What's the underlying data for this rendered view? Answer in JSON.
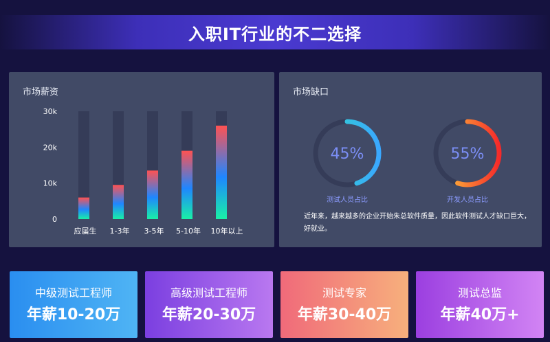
{
  "header": {
    "title": "入职IT行业的不二选择"
  },
  "salary_panel": {
    "title": "市场薪资"
  },
  "gap_panel": {
    "title": "市场缺口",
    "description": "近年来，越来越多的企业开始朱总软件质量，因此软件测试人才缺口巨大，好就业。"
  },
  "chart_data": [
    {
      "type": "bar",
      "title": "市场薪资",
      "categories": [
        "应届生",
        "1-3年",
        "3-5年",
        "5-10年",
        "10年以上"
      ],
      "values": [
        6,
        9.5,
        13.5,
        19,
        26
      ],
      "ylim": [
        0,
        30
      ],
      "yticks": [
        "0",
        "10k",
        "20k",
        "30k"
      ],
      "grid": false
    },
    {
      "type": "pie",
      "title": "测试人员占比",
      "label": "45%",
      "value": 45,
      "caption": "测试人员占比",
      "colors": [
        "#2fd9c4",
        "#3aa8ff"
      ]
    },
    {
      "type": "pie",
      "title": "开发人员占比",
      "label": "55%",
      "value": 55,
      "caption": "开发人员占比",
      "colors": [
        "#ffd23c",
        "#f52a2a"
      ]
    }
  ],
  "cards": [
    {
      "role": "中级测试工程师",
      "salary": "年薪10-20万",
      "gradient": [
        "#2a8ef0",
        "#4fb4f4"
      ]
    },
    {
      "role": "高级测试工程师",
      "salary": "年薪20-30万",
      "gradient": [
        "#7b3fe0",
        "#b978f0"
      ]
    },
    {
      "role": "测试专家",
      "salary": "年薪30-40万",
      "gradient": [
        "#f06a7a",
        "#f7b07c"
      ]
    },
    {
      "role": "测试总监",
      "salary": "年薪40万+",
      "gradient": [
        "#9b3fe0",
        "#d284f4"
      ]
    }
  ]
}
